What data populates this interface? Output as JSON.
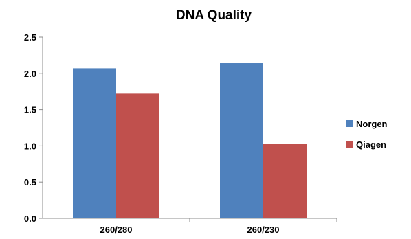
{
  "chart_data": {
    "type": "bar",
    "title": "DNA Quality",
    "xlabel": "",
    "ylabel": "",
    "categories": [
      "260/280",
      "260/230"
    ],
    "series": [
      {
        "name": "Norgen",
        "values": [
          2.07,
          2.14
        ],
        "color": "#4f81bd"
      },
      {
        "name": "Qiagen",
        "values": [
          1.72,
          1.03
        ],
        "color": "#c0504d"
      }
    ],
    "ylim": [
      0,
      2.5
    ],
    "yticks": [
      0.0,
      0.5,
      1.0,
      1.5,
      2.0,
      2.5
    ],
    "ytick_labels": [
      "0.0",
      "0.5",
      "1.0",
      "1.5",
      "2.0",
      "2.5"
    ],
    "grid": false,
    "legend": "right"
  }
}
